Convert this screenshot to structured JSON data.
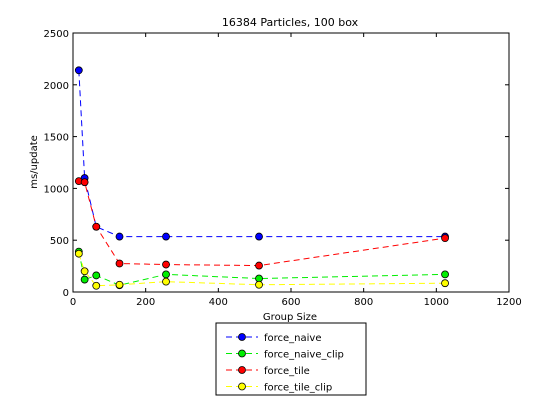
{
  "chart_data": {
    "type": "line",
    "title": "16384 Particles, 100 box",
    "xlabel": "Group Size",
    "ylabel": "ms/update",
    "xlim": [
      0,
      1200
    ],
    "ylim": [
      0,
      2500
    ],
    "xticks": [
      0,
      200,
      400,
      600,
      800,
      1000,
      1200
    ],
    "yticks": [
      0,
      500,
      1000,
      1500,
      2000,
      2500
    ],
    "grid": false,
    "legend_position": "bottom-center outside",
    "series": [
      {
        "name": "force_naive",
        "color": "#0000ff",
        "marker": "circle",
        "linestyle": "dashed",
        "x": [
          16,
          32,
          64,
          128,
          256,
          512,
          1024
        ],
        "y": [
          2140,
          1100,
          630,
          535,
          535,
          535,
          535
        ]
      },
      {
        "name": "force_naive_clip",
        "color": "#00ee00",
        "marker": "circle",
        "linestyle": "dashed",
        "x": [
          16,
          32,
          64,
          128,
          256,
          512,
          1024
        ],
        "y": [
          390,
          120,
          160,
          65,
          170,
          130,
          170
        ]
      },
      {
        "name": "force_tile",
        "color": "#ff0000",
        "marker": "circle",
        "linestyle": "dashed",
        "x": [
          16,
          32,
          64,
          128,
          256,
          512,
          1024
        ],
        "y": [
          1070,
          1060,
          630,
          275,
          265,
          255,
          520
        ]
      },
      {
        "name": "force_tile_clip",
        "color": "#ffff00",
        "marker": "circle",
        "linestyle": "dashed",
        "x": [
          16,
          32,
          64,
          128,
          256,
          512,
          1024
        ],
        "y": [
          370,
          200,
          60,
          70,
          100,
          70,
          85
        ]
      }
    ]
  }
}
